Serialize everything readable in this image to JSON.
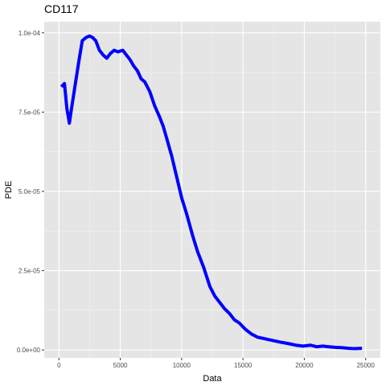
{
  "chart_data": {
    "type": "line",
    "title": "CD117",
    "xlabel": "Data",
    "ylabel": "PDE",
    "xlim": [
      -1200,
      26200
    ],
    "ylim": [
      -2.5e-06,
      0.0001035
    ],
    "x_ticks": [
      0,
      5000,
      10000,
      15000,
      20000,
      25000
    ],
    "x_tick_labels": [
      "0",
      "5000",
      "10000",
      "15000",
      "20000",
      "25000"
    ],
    "y_ticks": [
      0,
      2.5e-05,
      5e-05,
      7.5e-05,
      0.0001
    ],
    "y_tick_labels": [
      "0.0e+00",
      "2.5e-05",
      "5.0e-05",
      "7.5e-05",
      "1.0e-04"
    ],
    "grid": true,
    "legend": "none",
    "colors": {
      "line": "#0000ff",
      "panel": "#e5e5e5",
      "grid_major": "#ffffff",
      "grid_minor": "#f2f2f2",
      "tick": "#333333"
    },
    "series": [
      {
        "x": [
          200,
          450,
          650,
          850,
          1000,
          1300,
          1600,
          1900,
          2200,
          2500,
          2750,
          3000,
          3300,
          3600,
          3900,
          4200,
          4500,
          4800,
          5200,
          5500,
          5800,
          6100,
          6400,
          6700,
          7000,
          7400,
          7800,
          8200,
          8500,
          8800,
          9200,
          9600,
          10000,
          10400,
          10900,
          11300,
          11800,
          12300,
          12700,
          13100,
          13500,
          13900,
          14300,
          14700,
          15200,
          15700,
          16200,
          16800,
          17400,
          18000,
          18700,
          19300,
          19900,
          20500,
          21000,
          21500,
          22000,
          22600,
          23100,
          23600,
          24100,
          24700
        ],
        "y": [
          8.3e-05,
          8.4e-05,
          7.6e-05,
          7.15e-05,
          7.55e-05,
          8.3e-05,
          9.05e-05,
          9.75e-05,
          9.85e-05,
          9.9e-05,
          9.85e-05,
          9.75e-05,
          9.45e-05,
          9.3e-05,
          9.2e-05,
          9.35e-05,
          9.45e-05,
          9.4e-05,
          9.45e-05,
          9.3e-05,
          9.15e-05,
          8.95e-05,
          8.8e-05,
          8.55e-05,
          8.45e-05,
          8.15e-05,
          7.7e-05,
          7.35e-05,
          7.05e-05,
          6.65e-05,
          6.1e-05,
          5.45e-05,
          4.8e-05,
          4.3e-05,
          3.6e-05,
          3.1e-05,
          2.6e-05,
          2e-05,
          1.7e-05,
          1.5e-05,
          1.3e-05,
          1.15e-05,
          9.5e-06,
          8.5e-06,
          6.5e-06,
          5e-06,
          4e-06,
          3.5e-06,
          3e-06,
          2.5e-06,
          2e-06,
          1.5e-06,
          1.2e-06,
          1.5e-06,
          1e-06,
          1.2e-06,
          1e-06,
          8e-07,
          7e-07,
          5e-07,
          4e-07,
          5e-07
        ]
      }
    ]
  }
}
